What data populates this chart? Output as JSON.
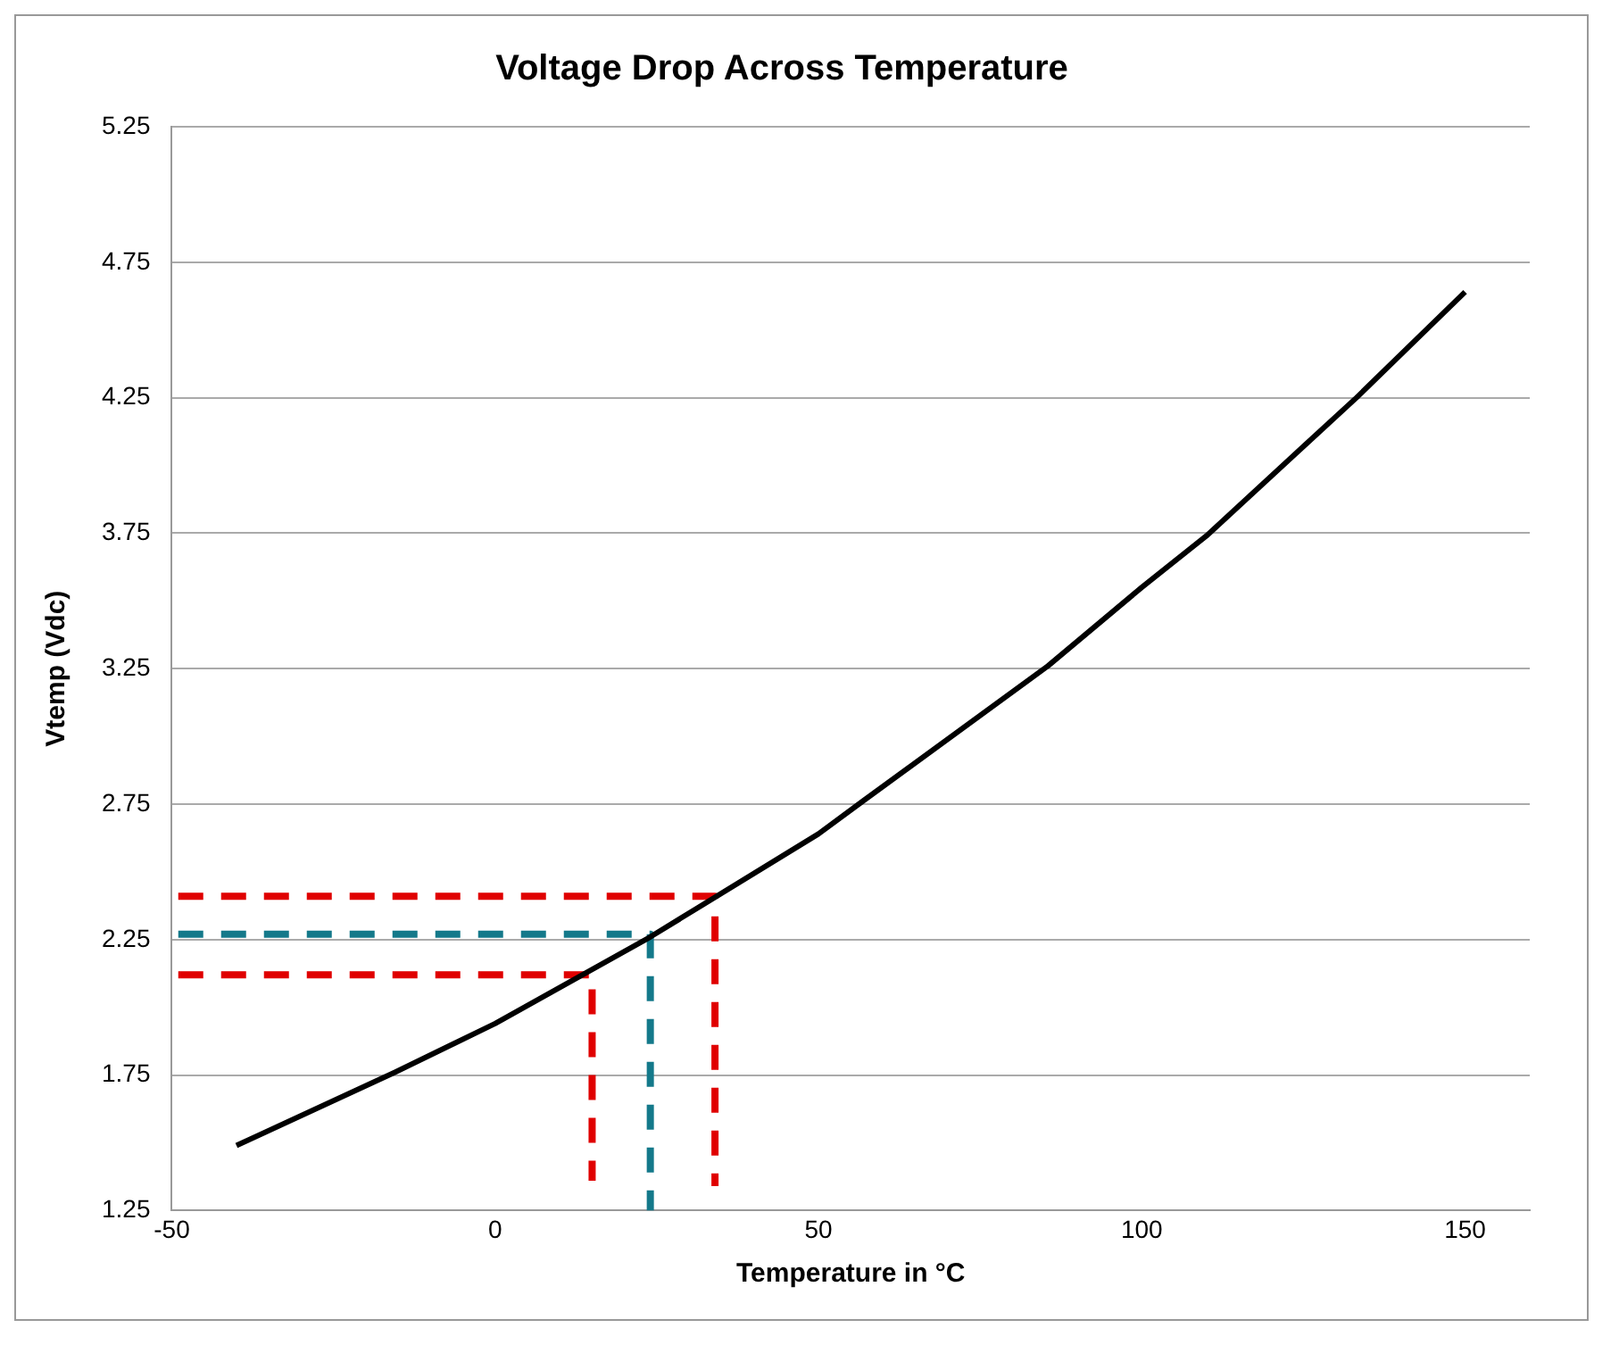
{
  "chart_data": {
    "type": "line",
    "title": "Voltage Drop Across Temperature",
    "xlabel": "Temperature in °C",
    "ylabel": "Vtemp (Vdc)",
    "xlim": [
      -50,
      160
    ],
    "xticks": [
      -50,
      0,
      50,
      100,
      150
    ],
    "ylim": [
      1.25,
      5.25
    ],
    "yticks": [
      1.25,
      1.75,
      2.25,
      2.75,
      3.25,
      3.75,
      4.25,
      4.75,
      5.25
    ],
    "grid": "y",
    "legend": false,
    "marker": "none",
    "series": [
      {
        "color": "#000000",
        "line_style": "solid",
        "x": [
          -40,
          -15.5,
          0,
          24,
          50,
          56.8,
          85.5,
          100,
          110,
          125,
          133.2,
          150
        ],
        "values": [
          1.49,
          1.76,
          1.94,
          2.26,
          2.64,
          2.76,
          3.26,
          3.55,
          3.74,
          4.07,
          4.25,
          4.64
        ]
      },
      {
        "color": "#14798a",
        "line_style": "dashed",
        "x": [
          -49,
          24,
          24
        ],
        "values": [
          2.27,
          2.27,
          1.25
        ]
      },
      {
        "color": "#e00000",
        "line_style": "dashed",
        "x": [
          -49,
          34,
          34
        ],
        "values": [
          2.41,
          2.41,
          1.34
        ]
      },
      {
        "color": "#e00000",
        "line_style": "dashed",
        "x": [
          -49,
          15,
          15
        ],
        "values": [
          2.12,
          2.12,
          1.36
        ]
      }
    ]
  }
}
